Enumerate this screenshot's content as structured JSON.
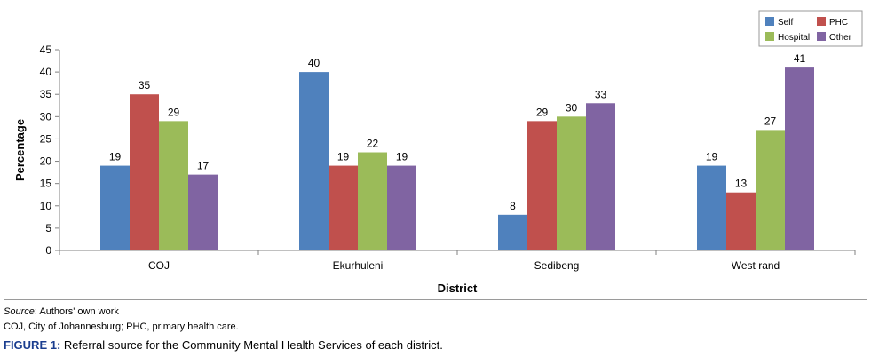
{
  "chart_data": {
    "type": "bar",
    "title": "",
    "xlabel": "District",
    "ylabel": "Percentage",
    "ylim": [
      0,
      45
    ],
    "yticks": [
      0,
      5,
      10,
      15,
      20,
      25,
      30,
      35,
      40,
      45
    ],
    "grid": false,
    "legend_position": "top-right",
    "categories": [
      "COJ",
      "Ekurhuleni",
      "Sedibeng",
      "West rand"
    ],
    "series": [
      {
        "name": "Self",
        "color": "#4f81bd",
        "values": [
          19,
          40,
          8,
          19
        ]
      },
      {
        "name": "PHC",
        "color": "#c0504d",
        "values": [
          35,
          19,
          29,
          13
        ]
      },
      {
        "name": "Hospital",
        "color": "#9bbb59",
        "values": [
          29,
          22,
          30,
          27
        ]
      },
      {
        "name": "Other",
        "color": "#8064a2",
        "values": [
          17,
          19,
          33,
          41
        ]
      }
    ]
  },
  "captions": {
    "source_label": "Source",
    "source_text": ": Authors' own work",
    "abbreviations": "COJ, City of Johannesburg; PHC, primary health care.",
    "figure_label": "FIGURE 1:",
    "figure_text": " Referral source for the Community Mental Health Services of each district."
  }
}
